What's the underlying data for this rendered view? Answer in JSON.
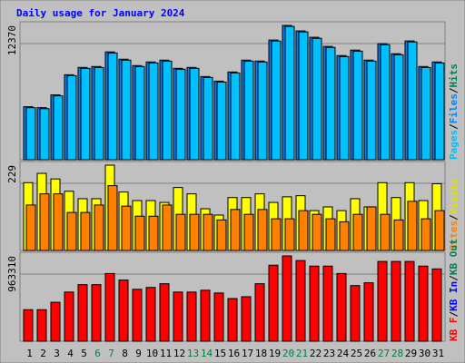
{
  "chart_data": {
    "type": "bar",
    "title": "Daily usage for January 2024",
    "categories": [
      "1",
      "2",
      "3",
      "4",
      "5",
      "6",
      "7",
      "8",
      "9",
      "10",
      "11",
      "12",
      "13",
      "14",
      "15",
      "16",
      "17",
      "18",
      "19",
      "20",
      "21",
      "22",
      "23",
      "24",
      "25",
      "26",
      "27",
      "28",
      "29",
      "30",
      "31"
    ],
    "highlighted": [
      "6",
      "7",
      "13",
      "14",
      "20",
      "21",
      "27",
      "28"
    ],
    "highlight_color": "#008040",
    "panels": [
      {
        "ylim": [
          0,
          12370
        ],
        "yticks": [
          12370
        ],
        "label_parts": [
          {
            "text": "Pages",
            "color": "#00c0ff"
          },
          {
            "text": "/",
            "color": "#000000"
          },
          {
            "text": "Files",
            "color": "#0080ff"
          },
          {
            "text": "/",
            "color": "#000000"
          },
          {
            "text": "Hits",
            "color": "#008050"
          }
        ],
        "series": [
          {
            "color": "#0080ff",
            "values": [
              4881,
              4797,
              5975,
              7826,
              8499,
              8583,
              9930,
              9257,
              8668,
              9004,
              9172,
              8415,
              8499,
              7658,
              7237,
              8079,
              9172,
              9088,
              11024,
              12370,
              11865,
              11276,
              10435,
              9593,
              10098,
              9172,
              10687,
              9762,
              10940,
              8583,
              9004
            ]
          },
          {
            "color": "#00c0ff",
            "values": [
              4790,
              4700,
              5880,
              7740,
              8410,
              8490,
              9830,
              9170,
              8580,
              8910,
              9080,
              8330,
              8410,
              7570,
              7150,
              7990,
              9080,
              9000,
              10930,
              12280,
              11770,
              11180,
              10340,
              9500,
              10000,
              9080,
              10590,
              9670,
              10850,
              8490,
              8910
            ]
          }
        ]
      },
      {
        "ylim": [
          0,
          229
        ],
        "yticks": [
          229
        ],
        "label_parts": [
          {
            "text": "Sites",
            "color": "#ff8000"
          },
          {
            "text": "/",
            "color": "#000000"
          },
          {
            "text": "Visits",
            "color": "#e0e000"
          }
        ],
        "series": [
          {
            "color": "#ffff00",
            "values": [
              182,
              207,
              192,
              159,
              139,
              139,
              229,
              157,
              134,
              134,
              129,
              169,
              152,
              112,
              95,
              142,
              142,
              152,
              129,
              144,
              147,
              107,
              117,
              107,
              139,
              117,
              182,
              142,
              182,
              134,
              179
            ]
          },
          {
            "color": "#ff8000",
            "values": [
              122,
              152,
              152,
              102,
              102,
              122,
              174,
              119,
              92,
              92,
              122,
              97,
              97,
              97,
              82,
              110,
              97,
              110,
              85,
              85,
              107,
              97,
              85,
              77,
              97,
              117,
              97,
              82,
              132,
              85,
              107
            ]
          }
        ]
      },
      {
        "ylim": [
          0,
          963310
        ],
        "yticks": [
          963310
        ],
        "label_parts": [
          {
            "text": "KB F",
            "color": "#ff0000"
          },
          {
            "text": "/",
            "color": "#000000"
          },
          {
            "text": "KB In",
            "color": "#0000ff"
          },
          {
            "text": "/",
            "color": "#000000"
          },
          {
            "text": "KB Out",
            "color": "#008050"
          }
        ],
        "series": [
          {
            "color": "#ff0000",
            "values": [
              356000,
              356000,
              439800,
              555000,
              638700,
              638700,
              764400,
              691100,
              586400,
              607300,
              649200,
              555000,
              555000,
              575900,
              544500,
              481700,
              502600,
              649200,
              858600,
              963310,
              910900,
              848200,
              848200,
              764400,
              628300,
              659700,
              900500,
              900500,
              900500,
              848200,
              816700
            ]
          }
        ]
      }
    ]
  }
}
